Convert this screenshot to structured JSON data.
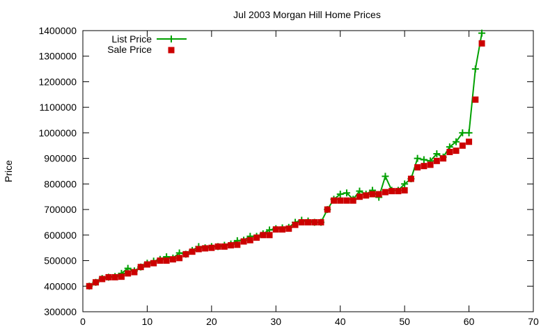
{
  "chart_data": {
    "type": "line",
    "title": "Jul 2003 Morgan Hill Home Prices",
    "xlabel": "",
    "ylabel": "Price",
    "xlim": [
      0,
      70
    ],
    "ylim": [
      300000,
      1400000
    ],
    "xticks": [
      0,
      10,
      20,
      30,
      40,
      50,
      60,
      70
    ],
    "yticks": [
      300000,
      400000,
      500000,
      600000,
      700000,
      800000,
      900000,
      1000000,
      1100000,
      1200000,
      1300000,
      1400000
    ],
    "grid": false,
    "legend_position": "top-left",
    "series": [
      {
        "name": "List Price",
        "color": "#00a000",
        "style": "line-with-plus-markers",
        "x": [
          1,
          2,
          3,
          4,
          5,
          6,
          7,
          8,
          9,
          10,
          11,
          12,
          13,
          14,
          15,
          16,
          17,
          18,
          19,
          20,
          21,
          22,
          23,
          24,
          25,
          26,
          27,
          28,
          29,
          30,
          31,
          32,
          33,
          34,
          35,
          36,
          37,
          38,
          39,
          40,
          41,
          42,
          43,
          44,
          45,
          46,
          47,
          48,
          49,
          50,
          51,
          52,
          53,
          54,
          55,
          56,
          57,
          58,
          59,
          60,
          61,
          62
        ],
        "y": [
          400000,
          415000,
          430000,
          435000,
          438000,
          450000,
          470000,
          460000,
          475000,
          490000,
          498000,
          505000,
          515000,
          510000,
          530000,
          525000,
          540000,
          555000,
          550000,
          555000,
          555000,
          560000,
          565000,
          578000,
          580000,
          595000,
          595000,
          605000,
          620000,
          625000,
          628000,
          630000,
          650000,
          658000,
          655000,
          650000,
          650000,
          700000,
          740000,
          760000,
          765000,
          740000,
          772000,
          760000,
          775000,
          748000,
          830000,
          775000,
          775000,
          800000,
          820000,
          900000,
          895000,
          890000,
          918000,
          905000,
          945000,
          965000,
          1000000,
          1000000,
          1250000,
          1390000
        ]
      },
      {
        "name": "Sale Price",
        "color": "#cc0000",
        "style": "square-markers",
        "x": [
          1,
          2,
          3,
          4,
          5,
          6,
          7,
          8,
          9,
          10,
          11,
          12,
          13,
          14,
          15,
          16,
          17,
          18,
          19,
          20,
          21,
          22,
          23,
          24,
          25,
          26,
          27,
          28,
          29,
          30,
          31,
          32,
          33,
          34,
          35,
          36,
          37,
          38,
          39,
          40,
          41,
          42,
          43,
          44,
          45,
          46,
          47,
          48,
          49,
          50,
          51,
          52,
          53,
          54,
          55,
          56,
          57,
          58,
          59,
          60,
          61,
          62
        ],
        "y": [
          400000,
          415000,
          428000,
          435000,
          435000,
          437000,
          450000,
          455000,
          475000,
          485000,
          490000,
          500000,
          500000,
          505000,
          510000,
          525000,
          535000,
          545000,
          548000,
          550000,
          555000,
          555000,
          560000,
          562000,
          575000,
          580000,
          590000,
          600000,
          600000,
          622000,
          622000,
          625000,
          640000,
          650000,
          650000,
          650000,
          650000,
          700000,
          735000,
          735000,
          735000,
          735000,
          750000,
          755000,
          760000,
          760000,
          768000,
          772000,
          772000,
          775000,
          820000,
          865000,
          870000,
          875000,
          890000,
          900000,
          925000,
          930000,
          950000,
          965000,
          1130000,
          1350000
        ]
      }
    ]
  }
}
